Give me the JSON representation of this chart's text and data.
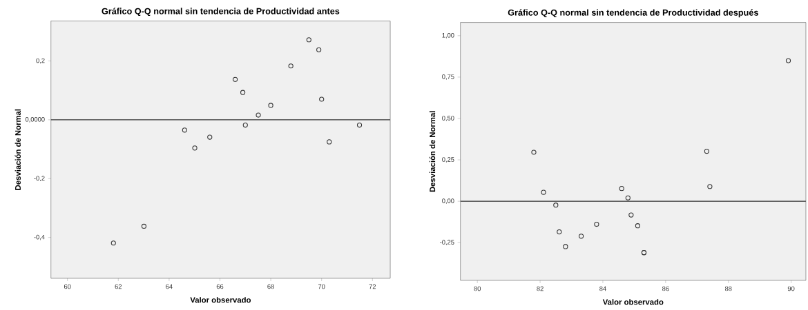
{
  "chart_data": [
    {
      "type": "scatter",
      "title": "Gráfico Q-Q normal sin tendencia de Productividad antes",
      "xlabel": "Valor observado",
      "ylabel": "Desviación de Normal",
      "color": "#333333",
      "marker": "circle",
      "x": [
        69.5,
        69.89,
        68.79,
        66.6,
        66.9,
        70.0,
        68.0,
        67.51,
        67.0,
        71.49,
        64.61,
        70.3,
        65.6,
        65.01,
        63.01,
        61.81
      ],
      "values": [
        0.272,
        0.238,
        0.183,
        0.137,
        0.093,
        0.07,
        0.049,
        0.016,
        -0.018,
        -0.018,
        -0.035,
        -0.075,
        -0.059,
        -0.096,
        -0.362,
        -0.419
      ],
      "xlim": [
        59.35,
        72.7
      ],
      "ylim": [
        -0.539,
        0.336
      ],
      "xticks": [
        60,
        62,
        64,
        66,
        68,
        70,
        72
      ],
      "yticks": [
        {
          "value": -0.4,
          "label": "-0,4"
        },
        {
          "value": -0.2,
          "label": "-0,2"
        },
        {
          "value": 0,
          "label": "0,0000"
        },
        {
          "value": 0.2,
          "label": "0,2"
        }
      ],
      "ref_lines": [
        {
          "axis": "y",
          "value": 0,
          "color": "#333333"
        }
      ]
    },
    {
      "type": "scatter",
      "title": "Gráfico Q-Q normal sin tendencia de Productividad después",
      "xlabel": "Valor observado",
      "ylabel": "Desviación de Normal",
      "color": "#333333",
      "marker": "circle",
      "x": [
        89.91,
        81.8,
        87.31,
        82.11,
        87.41,
        84.6,
        84.8,
        82.5,
        84.9,
        83.8,
        85.11,
        82.61,
        83.31,
        82.81,
        85.31,
        85.31
      ],
      "values": [
        0.849,
        0.296,
        0.302,
        0.054,
        0.089,
        0.077,
        0.02,
        -0.023,
        -0.083,
        -0.139,
        -0.148,
        -0.185,
        -0.211,
        -0.274,
        -0.31,
        -0.31
      ],
      "xlim": [
        79.46,
        90.47
      ],
      "ylim": [
        -0.478,
        1.08
      ],
      "xticks": [
        80,
        82,
        84,
        86,
        88,
        90
      ],
      "yticks": [
        {
          "value": -0.25,
          "label": "-0,25"
        },
        {
          "value": 0,
          "label": "0,00"
        },
        {
          "value": 0.25,
          "label": "0,25"
        },
        {
          "value": 0.5,
          "label": "0,50"
        },
        {
          "value": 0.75,
          "label": "0,75"
        },
        {
          "value": 1.0,
          "label": "1,00"
        }
      ],
      "ref_lines": [
        {
          "axis": "y",
          "value": 0,
          "color": "#333333"
        }
      ]
    }
  ]
}
